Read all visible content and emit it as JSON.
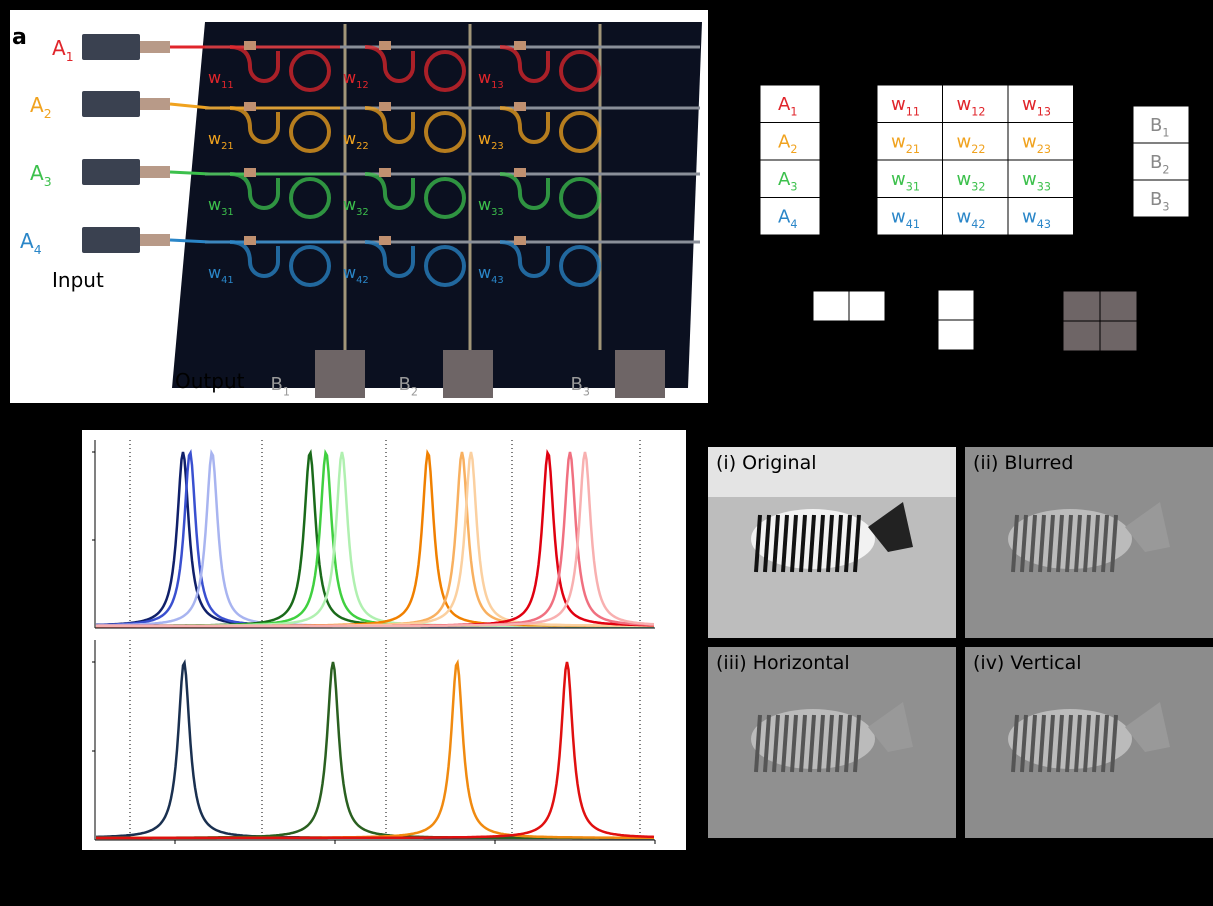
{
  "panel_label": "a",
  "device": {
    "inputs": [
      {
        "base": "A",
        "sub": "1",
        "color": "#e0252b"
      },
      {
        "base": "A",
        "sub": "2",
        "color": "#f0a21e"
      },
      {
        "base": "A",
        "sub": "3",
        "color": "#3cc04c"
      },
      {
        "base": "A",
        "sub": "4",
        "color": "#2a86c8"
      }
    ],
    "weights": [
      [
        {
          "base": "w",
          "sub": "11"
        },
        {
          "base": "w",
          "sub": "12"
        },
        {
          "base": "w",
          "sub": "13"
        }
      ],
      [
        {
          "base": "w",
          "sub": "21"
        },
        {
          "base": "w",
          "sub": "22"
        },
        {
          "base": "w",
          "sub": "23"
        }
      ],
      [
        {
          "base": "w",
          "sub": "31"
        },
        {
          "base": "w",
          "sub": "32"
        },
        {
          "base": "w",
          "sub": "33"
        }
      ],
      [
        {
          "base": "w",
          "sub": "41"
        },
        {
          "base": "w",
          "sub": "42"
        },
        {
          "base": "w",
          "sub": "43"
        }
      ]
    ],
    "input_label": "Input",
    "output_label": "Output",
    "outputs": [
      {
        "base": "B",
        "sub": "1"
      },
      {
        "base": "B",
        "sub": "2"
      },
      {
        "base": "B",
        "sub": "3"
      }
    ]
  },
  "matrices": {
    "input_vector": [
      {
        "base": "A",
        "sub": "1"
      },
      {
        "base": "A",
        "sub": "2"
      },
      {
        "base": "A",
        "sub": "3"
      },
      {
        "base": "A",
        "sub": "4"
      }
    ],
    "weight_matrix": [
      [
        {
          "base": "w",
          "sub": "11"
        },
        {
          "base": "w",
          "sub": "12"
        },
        {
          "base": "w",
          "sub": "13"
        }
      ],
      [
        {
          "base": "w",
          "sub": "21"
        },
        {
          "base": "w",
          "sub": "22"
        },
        {
          "base": "w",
          "sub": "23"
        }
      ],
      [
        {
          "base": "w",
          "sub": "31"
        },
        {
          "base": "w",
          "sub": "32"
        },
        {
          "base": "w",
          "sub": "33"
        }
      ],
      [
        {
          "base": "w",
          "sub": "41"
        },
        {
          "base": "w",
          "sub": "42"
        },
        {
          "base": "w",
          "sub": "43"
        }
      ]
    ],
    "output_vector": [
      {
        "base": "B",
        "sub": "1"
      },
      {
        "base": "B",
        "sub": "2"
      },
      {
        "base": "B",
        "sub": "3"
      }
    ]
  },
  "images": [
    {
      "label": "(i) Original"
    },
    {
      "label": "(ii) Blurred"
    },
    {
      "label": "(iii) Horizontal"
    },
    {
      "label": "(iv) Vertical"
    }
  ]
}
